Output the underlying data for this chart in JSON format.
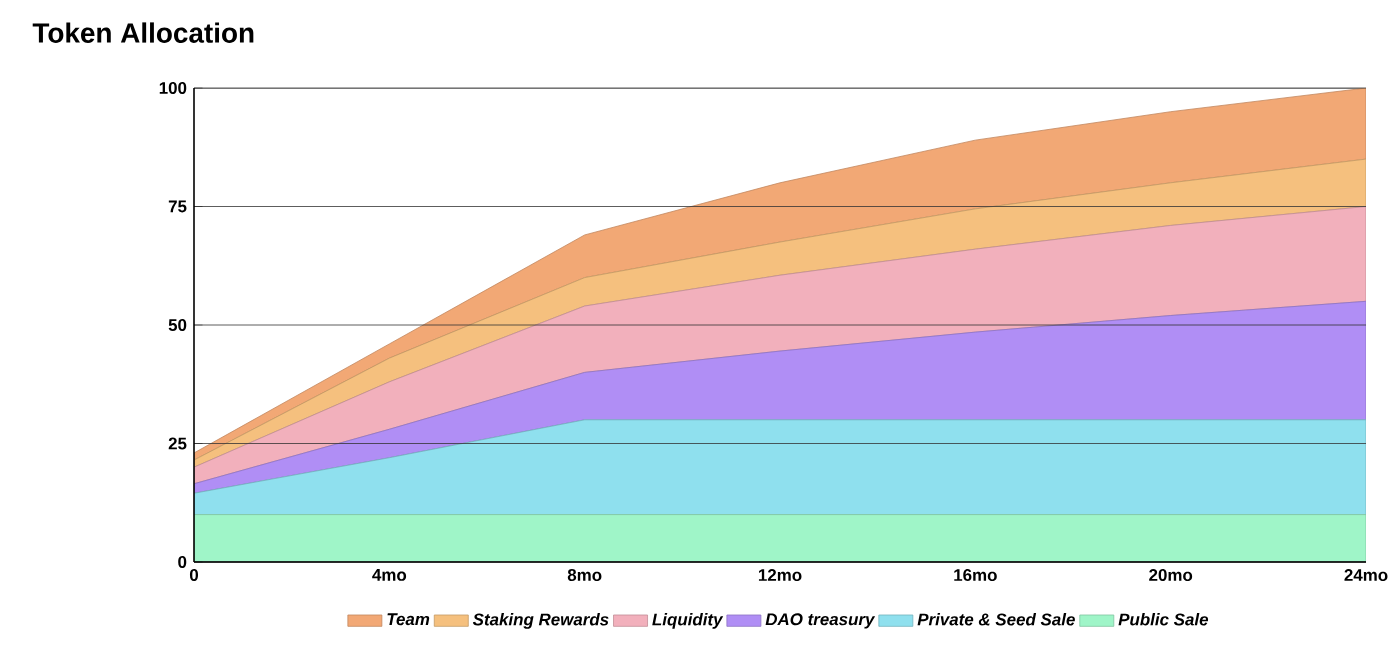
{
  "chart_data": {
    "type": "area",
    "title": "Token Allocation",
    "stacked": true,
    "grid": "y",
    "legend": "bottom",
    "x": [
      0,
      4,
      8,
      12,
      16,
      20,
      24
    ],
    "xlim": [
      0,
      24
    ],
    "xticks": [
      0,
      {
        "value": 4,
        "label": "4mo"
      },
      {
        "value": 8,
        "label": "8mo"
      },
      {
        "value": 12,
        "label": "12mo"
      },
      {
        "value": 16,
        "label": "16mo"
      },
      {
        "value": 20,
        "label": "20mo"
      },
      {
        "value": 24,
        "label": "24mo"
      }
    ],
    "ylim": [
      0,
      100
    ],
    "yticks": [
      0,
      25,
      50,
      75,
      100
    ],
    "series": [
      {
        "name": "Public Sale",
        "color": "#9ff5c8",
        "values": [
          10,
          10,
          10,
          10,
          10,
          10,
          10
        ]
      },
      {
        "name": "Private & Seed Sale",
        "color": "#8fe0ee",
        "values": [
          4.5,
          12,
          20,
          20,
          20,
          20,
          20
        ]
      },
      {
        "name": "DAO treasury",
        "color": "#b08ef5",
        "values": [
          2,
          6,
          10,
          14.5,
          18.5,
          22,
          25
        ]
      },
      {
        "name": "Liquidity",
        "color": "#f2b0bc",
        "values": [
          3.5,
          10,
          14,
          16,
          17.5,
          19,
          20
        ]
      },
      {
        "name": "Staking Rewards",
        "color": "#f5c07e",
        "values": [
          1.5,
          5,
          6,
          7,
          8.5,
          9,
          10
        ]
      },
      {
        "name": "Team",
        "color": "#f2a875",
        "values": [
          1.5,
          3,
          9,
          12.5,
          14.5,
          15,
          15
        ]
      }
    ]
  }
}
